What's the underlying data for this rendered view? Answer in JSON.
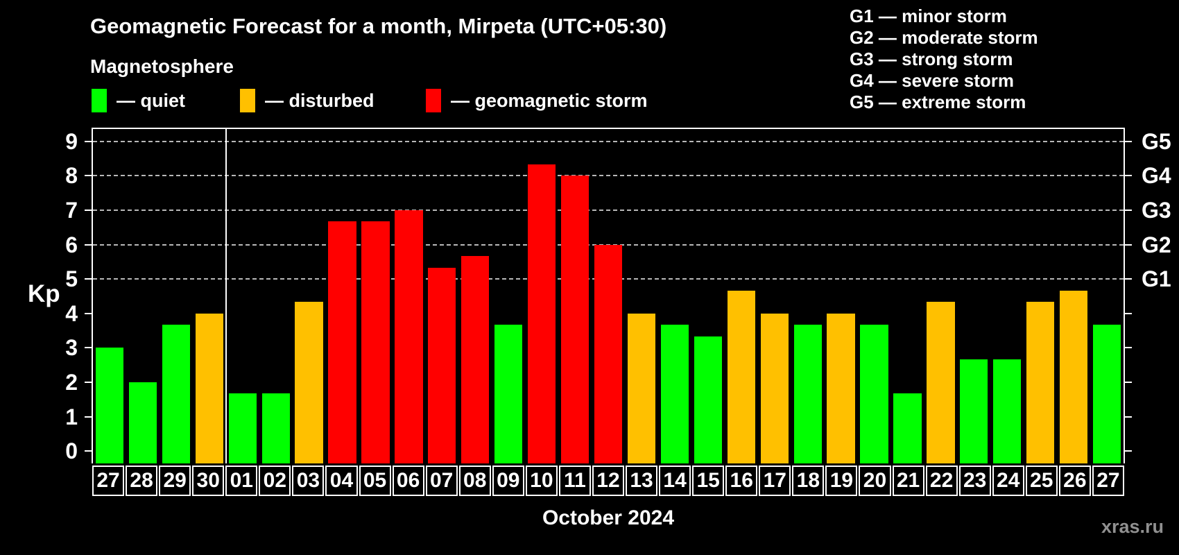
{
  "title": "Geomagnetic Forecast for a month, Mirpeta (UTC+05:30)",
  "subtitle": "Magnetosphere",
  "legend": [
    {
      "label": "— quiet",
      "key": "quiet"
    },
    {
      "label": "— disturbed",
      "key": "disturbed"
    },
    {
      "label": "— geomagnetic storm",
      "key": "storm"
    }
  ],
  "g_legend": [
    "G1 — minor storm",
    "G2 — moderate storm",
    "G3 — strong storm",
    "G4 — severe storm",
    "G5 — extreme storm"
  ],
  "y_axis": {
    "label": "Kp",
    "ticks": [
      0,
      1,
      2,
      3,
      4,
      5,
      6,
      7,
      8,
      9
    ]
  },
  "right_axis": {
    "labels": [
      {
        "text": "G5",
        "kp": 9
      },
      {
        "text": "G4",
        "kp": 8
      },
      {
        "text": "G3",
        "kp": 7
      },
      {
        "text": "G2",
        "kp": 6
      },
      {
        "text": "G1",
        "kp": 5
      }
    ]
  },
  "x_label": "October 2024",
  "watermark": "xras.ru",
  "colors": {
    "quiet": "#00ff00",
    "disturbed": "#ffc000",
    "storm": "#ff0000",
    "grid": "#b8b8b8",
    "axis": "#ffffff",
    "background": "#000000"
  },
  "chart_data": {
    "type": "bar",
    "title": "Geomagnetic Forecast for a month, Mirpeta (UTC+05:30)",
    "xlabel": "October 2024",
    "ylabel": "Kp",
    "ylim": [
      -0.36,
      9.36
    ],
    "grid": "dashed horizontal at Kp 5-9 only",
    "legend_position": "top-left",
    "gridlines_at": [
      5,
      6,
      7,
      8,
      9
    ],
    "month_boundary_after_index": 3,
    "categories": [
      "27",
      "28",
      "29",
      "30",
      "01",
      "02",
      "03",
      "04",
      "05",
      "06",
      "07",
      "08",
      "09",
      "10",
      "11",
      "12",
      "13",
      "14",
      "15",
      "16",
      "17",
      "18",
      "19",
      "20",
      "21",
      "22",
      "23",
      "24",
      "25",
      "26",
      "27"
    ],
    "values": [
      3.0,
      2.0,
      3.67,
      4.0,
      1.67,
      1.67,
      4.33,
      6.67,
      6.67,
      7.0,
      5.33,
      5.67,
      3.67,
      8.33,
      8.0,
      6.0,
      4.0,
      3.67,
      3.33,
      4.67,
      4.0,
      3.67,
      4.0,
      3.67,
      1.67,
      4.33,
      2.67,
      2.67,
      4.33,
      4.67,
      3.67
    ],
    "statuses": [
      "quiet",
      "quiet",
      "quiet",
      "disturbed",
      "quiet",
      "quiet",
      "disturbed",
      "storm",
      "storm",
      "storm",
      "storm",
      "storm",
      "quiet",
      "storm",
      "storm",
      "storm",
      "disturbed",
      "quiet",
      "quiet",
      "disturbed",
      "disturbed",
      "quiet",
      "disturbed",
      "quiet",
      "quiet",
      "disturbed",
      "quiet",
      "quiet",
      "disturbed",
      "disturbed",
      "quiet"
    ]
  }
}
